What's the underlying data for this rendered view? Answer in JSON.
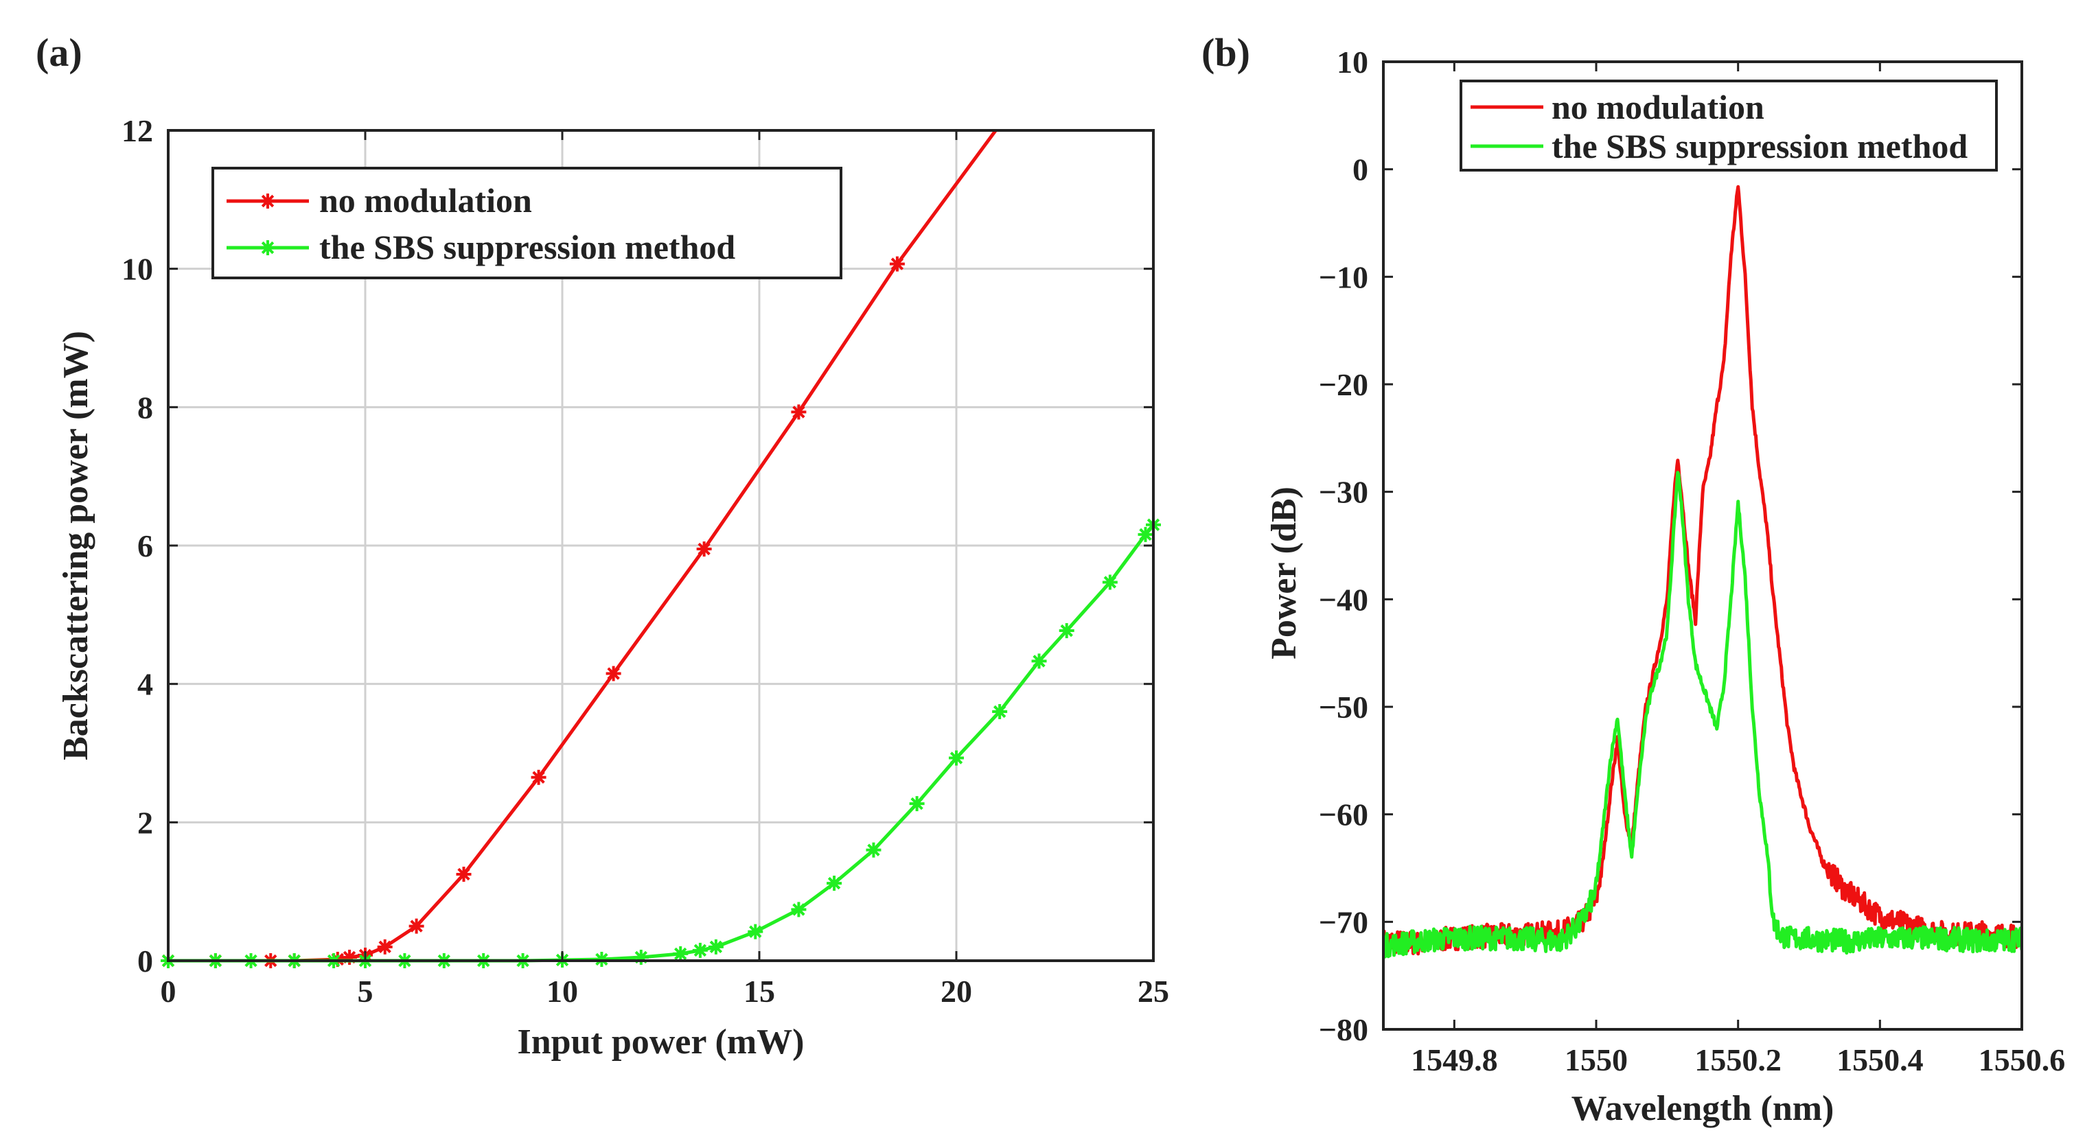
{
  "figure": {
    "colors": {
      "no_modulation": "#ee1111",
      "sbs": "#22ee22",
      "axis": "#222222",
      "grid": "#d0d0d0"
    }
  },
  "chart_data": [
    {
      "type": "line",
      "panel_label": "(a)",
      "xlabel": "Input power (mW)",
      "ylabel": "Backscattering power (mW)",
      "xlim": [
        0,
        25
      ],
      "ylim": [
        0,
        12
      ],
      "xticks": [
        "0",
        "5",
        "10",
        "15",
        "20",
        "25"
      ],
      "yticks": [
        "0",
        "2",
        "4",
        "6",
        "8",
        "10",
        "12"
      ],
      "grid": true,
      "legend_position": "top-left",
      "legend": [
        "no modulation",
        "the SBS suppression method"
      ],
      "series": [
        {
          "name": "no modulation",
          "marker": "asterisk",
          "x": [
            0,
            1.2,
            2.6,
            3.2,
            4.3,
            4.6,
            5.0,
            5.5,
            6.3,
            7.5,
            9.4,
            11.3,
            13.6,
            16.0,
            18.5,
            21.0
          ],
          "y": [
            0,
            0,
            0,
            0,
            0.02,
            0.05,
            0.08,
            0.2,
            0.5,
            1.25,
            2.65,
            4.15,
            5.95,
            7.93,
            10.07,
            12.1
          ]
        },
        {
          "name": "the SBS suppression method",
          "marker": "asterisk",
          "x": [
            0,
            1.2,
            2.1,
            3.2,
            4.2,
            5.0,
            6.0,
            7.0,
            8.0,
            9.0,
            10.0,
            11.0,
            12.0,
            13.0,
            13.5,
            13.9,
            14.9,
            16.0,
            16.9,
            17.9,
            19.0,
            20.0,
            21.1,
            22.1,
            22.8,
            23.9,
            24.8,
            25.0
          ],
          "y": [
            0,
            0,
            0,
            0,
            0,
            0,
            0,
            0,
            0,
            0,
            0.01,
            0.02,
            0.05,
            0.1,
            0.15,
            0.2,
            0.42,
            0.74,
            1.12,
            1.6,
            2.27,
            2.93,
            3.6,
            4.33,
            4.77,
            5.47,
            6.16,
            6.3
          ]
        }
      ]
    },
    {
      "type": "line",
      "panel_label": "(b)",
      "xlabel": "Wavelength (nm)",
      "ylabel": "Power (dB)",
      "xlim": [
        1549.7,
        1550.6
      ],
      "ylim": [
        -80,
        10
      ],
      "xticks": [
        "1549.8",
        "1550",
        "1550.2",
        "1550.4",
        "1550.6"
      ],
      "yticks": [
        "10",
        "0",
        "−10",
        "−20",
        "−30",
        "−40",
        "−50",
        "−60",
        "−70",
        "−80"
      ],
      "grid": false,
      "legend_position": "top-right",
      "legend": [
        "no modulation",
        "the SBS suppression method"
      ],
      "series": [
        {
          "name": "no modulation",
          "x": [
            1549.7,
            1549.75,
            1549.8,
            1549.85,
            1549.9,
            1549.95,
            1549.98,
            1550.0,
            1550.01,
            1550.02,
            1550.03,
            1550.04,
            1550.05,
            1550.06,
            1550.07,
            1550.08,
            1550.09,
            1550.1,
            1550.11,
            1550.115,
            1550.12,
            1550.13,
            1550.14,
            1550.15,
            1550.16,
            1550.17,
            1550.18,
            1550.19,
            1550.2,
            1550.21,
            1550.22,
            1550.23,
            1550.24,
            1550.25,
            1550.26,
            1550.27,
            1550.28,
            1550.3,
            1550.32,
            1550.35,
            1550.4,
            1550.45,
            1550.5,
            1550.55,
            1550.6
          ],
          "y": [
            -71.8,
            -72.0,
            -71.5,
            -71.3,
            -71.2,
            -71.0,
            -70.0,
            -68.0,
            -64.0,
            -58.0,
            -53.0,
            -60.0,
            -63.0,
            -56.0,
            -50.0,
            -47.0,
            -44.0,
            -40.0,
            -30.0,
            -27.0,
            -30.0,
            -37.0,
            -42.0,
            -30.0,
            -27.0,
            -22.0,
            -18.0,
            -8.0,
            -1.5,
            -10.0,
            -22.0,
            -28.0,
            -33.0,
            -40.0,
            -46.0,
            -52.0,
            -56.0,
            -61.0,
            -64.5,
            -67.0,
            -69.5,
            -70.5,
            -71.2,
            -71.0,
            -71.5
          ]
        },
        {
          "name": "the SBS suppression method",
          "x": [
            1549.7,
            1549.75,
            1549.8,
            1549.85,
            1549.9,
            1549.95,
            1549.98,
            1550.0,
            1550.01,
            1550.02,
            1550.03,
            1550.04,
            1550.05,
            1550.06,
            1550.07,
            1550.08,
            1550.09,
            1550.1,
            1550.11,
            1550.115,
            1550.12,
            1550.13,
            1550.14,
            1550.15,
            1550.16,
            1550.17,
            1550.18,
            1550.19,
            1550.2,
            1550.21,
            1550.22,
            1550.23,
            1550.24,
            1550.25,
            1550.26,
            1550.27,
            1550.3,
            1550.35,
            1550.4,
            1550.45,
            1550.5,
            1550.55,
            1550.6
          ],
          "y": [
            -72.2,
            -71.8,
            -71.5,
            -71.5,
            -71.6,
            -71.8,
            -70.0,
            -67.0,
            -61.0,
            -55.0,
            -51.0,
            -58.0,
            -64.0,
            -57.0,
            -51.0,
            -48.0,
            -46.0,
            -43.0,
            -33.0,
            -28.0,
            -31.0,
            -40.0,
            -46.0,
            -48.0,
            -50.0,
            -52.0,
            -48.0,
            -40.0,
            -31.0,
            -38.0,
            -50.0,
            -58.0,
            -63.0,
            -70.0,
            -71.2,
            -71.5,
            -71.6,
            -71.8,
            -71.6,
            -71.5,
            -71.6,
            -71.8,
            -71.6
          ]
        }
      ]
    }
  ]
}
